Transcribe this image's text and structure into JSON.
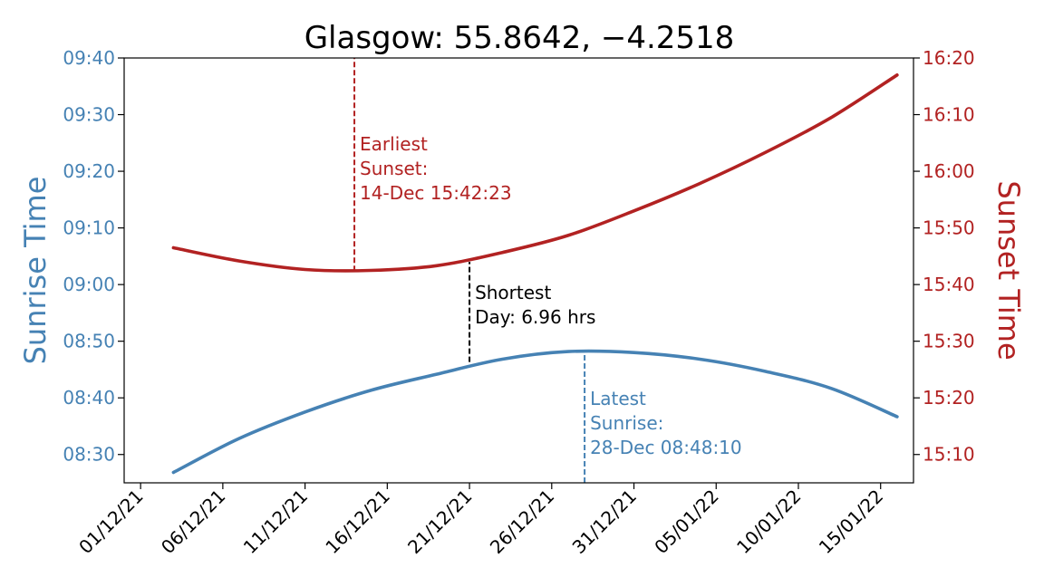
{
  "chart_data": {
    "type": "line",
    "title": "Glasgow: 55.8642, −4.2518",
    "xlabel": "",
    "x_tick_labels": [
      "01/12/21",
      "06/12/21",
      "11/12/21",
      "16/12/21",
      "21/12/21",
      "26/12/21",
      "31/12/21",
      "05/01/22",
      "10/01/22",
      "15/01/22"
    ],
    "x_tick_dates": [
      "2021-12-01",
      "2021-12-06",
      "2021-12-11",
      "2021-12-16",
      "2021-12-21",
      "2021-12-26",
      "2021-12-31",
      "2022-01-05",
      "2022-01-10",
      "2022-01-15"
    ],
    "xlim": [
      "2021-11-30",
      "2022-01-17"
    ],
    "y_left": {
      "label": "Sunrise Time",
      "color": "#4682b4",
      "ylim": [
        "08:25",
        "09:40"
      ],
      "tick_labels": [
        "08:30",
        "08:40",
        "08:50",
        "09:00",
        "09:10",
        "09:20",
        "09:30",
        "09:40"
      ]
    },
    "y_right": {
      "label": "Sunset Time",
      "color": "#b22222",
      "ylim": [
        "15:05",
        "16:20"
      ],
      "tick_labels": [
        "15:10",
        "15:20",
        "15:30",
        "15:40",
        "15:50",
        "16:00",
        "16:10",
        "16:20"
      ]
    },
    "series": [
      {
        "axis": "left",
        "color": "#4682b4",
        "x": [
          "2021-12-03",
          "2021-12-07",
          "2021-12-11",
          "2021-12-15",
          "2021-12-19",
          "2021-12-23",
          "2021-12-27",
          "2021-12-31",
          "2022-01-04",
          "2022-01-08",
          "2022-01-12",
          "2022-01-16"
        ],
        "y": [
          "08:26:50",
          "08:32:50",
          "08:37:30",
          "08:41:20",
          "08:44:10",
          "08:46:50",
          "08:48:10",
          "08:48:00",
          "08:46:50",
          "08:44:40",
          "08:41:40",
          "08:36:40"
        ]
      },
      {
        "axis": "right",
        "color": "#b22222",
        "x": [
          "2021-12-03",
          "2021-12-07",
          "2021-12-11",
          "2021-12-15",
          "2021-12-19",
          "2021-12-23",
          "2021-12-27",
          "2021-12-31",
          "2022-01-04",
          "2022-01-08",
          "2022-01-12",
          "2022-01-16"
        ],
        "y": [
          "15:46:30",
          "15:44:10",
          "15:42:40",
          "15:42:30",
          "15:43:20",
          "15:45:40",
          "15:48:40",
          "15:53:00",
          "15:57:50",
          "16:03:20",
          "16:09:30",
          "16:17:00"
        ]
      }
    ],
    "annotations": [
      {
        "text_lines": [
          "Earliest",
          "Sunset:",
          "14-Dec 15:42:23"
        ],
        "color": "#b22222",
        "x": "2021-12-14",
        "axis": "right",
        "y_from": "15:42:23",
        "y_to": "16:20"
      },
      {
        "text_lines": [
          "Shortest",
          "Day: 6.96 hrs"
        ],
        "color": "#000000",
        "x": "2021-12-21",
        "axis": "left",
        "y_from": "08:46:20",
        "y_to": "09:04:00"
      },
      {
        "text_lines": [
          "Latest",
          "Sunrise:",
          "28-Dec 08:48:10"
        ],
        "color": "#4682b4",
        "x": "2021-12-28",
        "axis": "left",
        "y_from": "08:25",
        "y_to": "08:48:10"
      }
    ]
  }
}
